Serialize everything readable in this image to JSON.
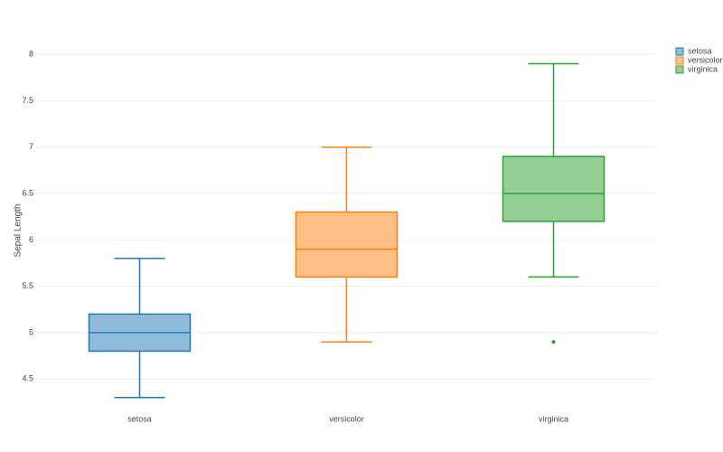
{
  "chart_data": {
    "type": "box",
    "y_label": "Sepal Length",
    "categories": [
      "setosa",
      "versicolor",
      "virginica"
    ],
    "series": [
      {
        "name": "setosa",
        "color": "#1f77b4",
        "min": 4.3,
        "q1": 4.8,
        "median": 5.0,
        "q3": 5.2,
        "max": 5.8,
        "outliers": []
      },
      {
        "name": "versicolor",
        "color": "#ff7f0e",
        "min": 4.9,
        "q1": 5.6,
        "median": 5.9,
        "q3": 6.3,
        "max": 7.0,
        "outliers": []
      },
      {
        "name": "virginica",
        "color": "#2ca02c",
        "min": 5.6,
        "q1": 6.2,
        "median": 6.5,
        "q3": 6.9,
        "max": 7.9,
        "outliers": [
          4.9
        ]
      }
    ],
    "ylim": [
      4.2,
      8.1
    ],
    "yticks": [
      4.5,
      5,
      5.5,
      6,
      6.5,
      7,
      7.5,
      8
    ],
    "grid": true,
    "legend": "top-right"
  }
}
